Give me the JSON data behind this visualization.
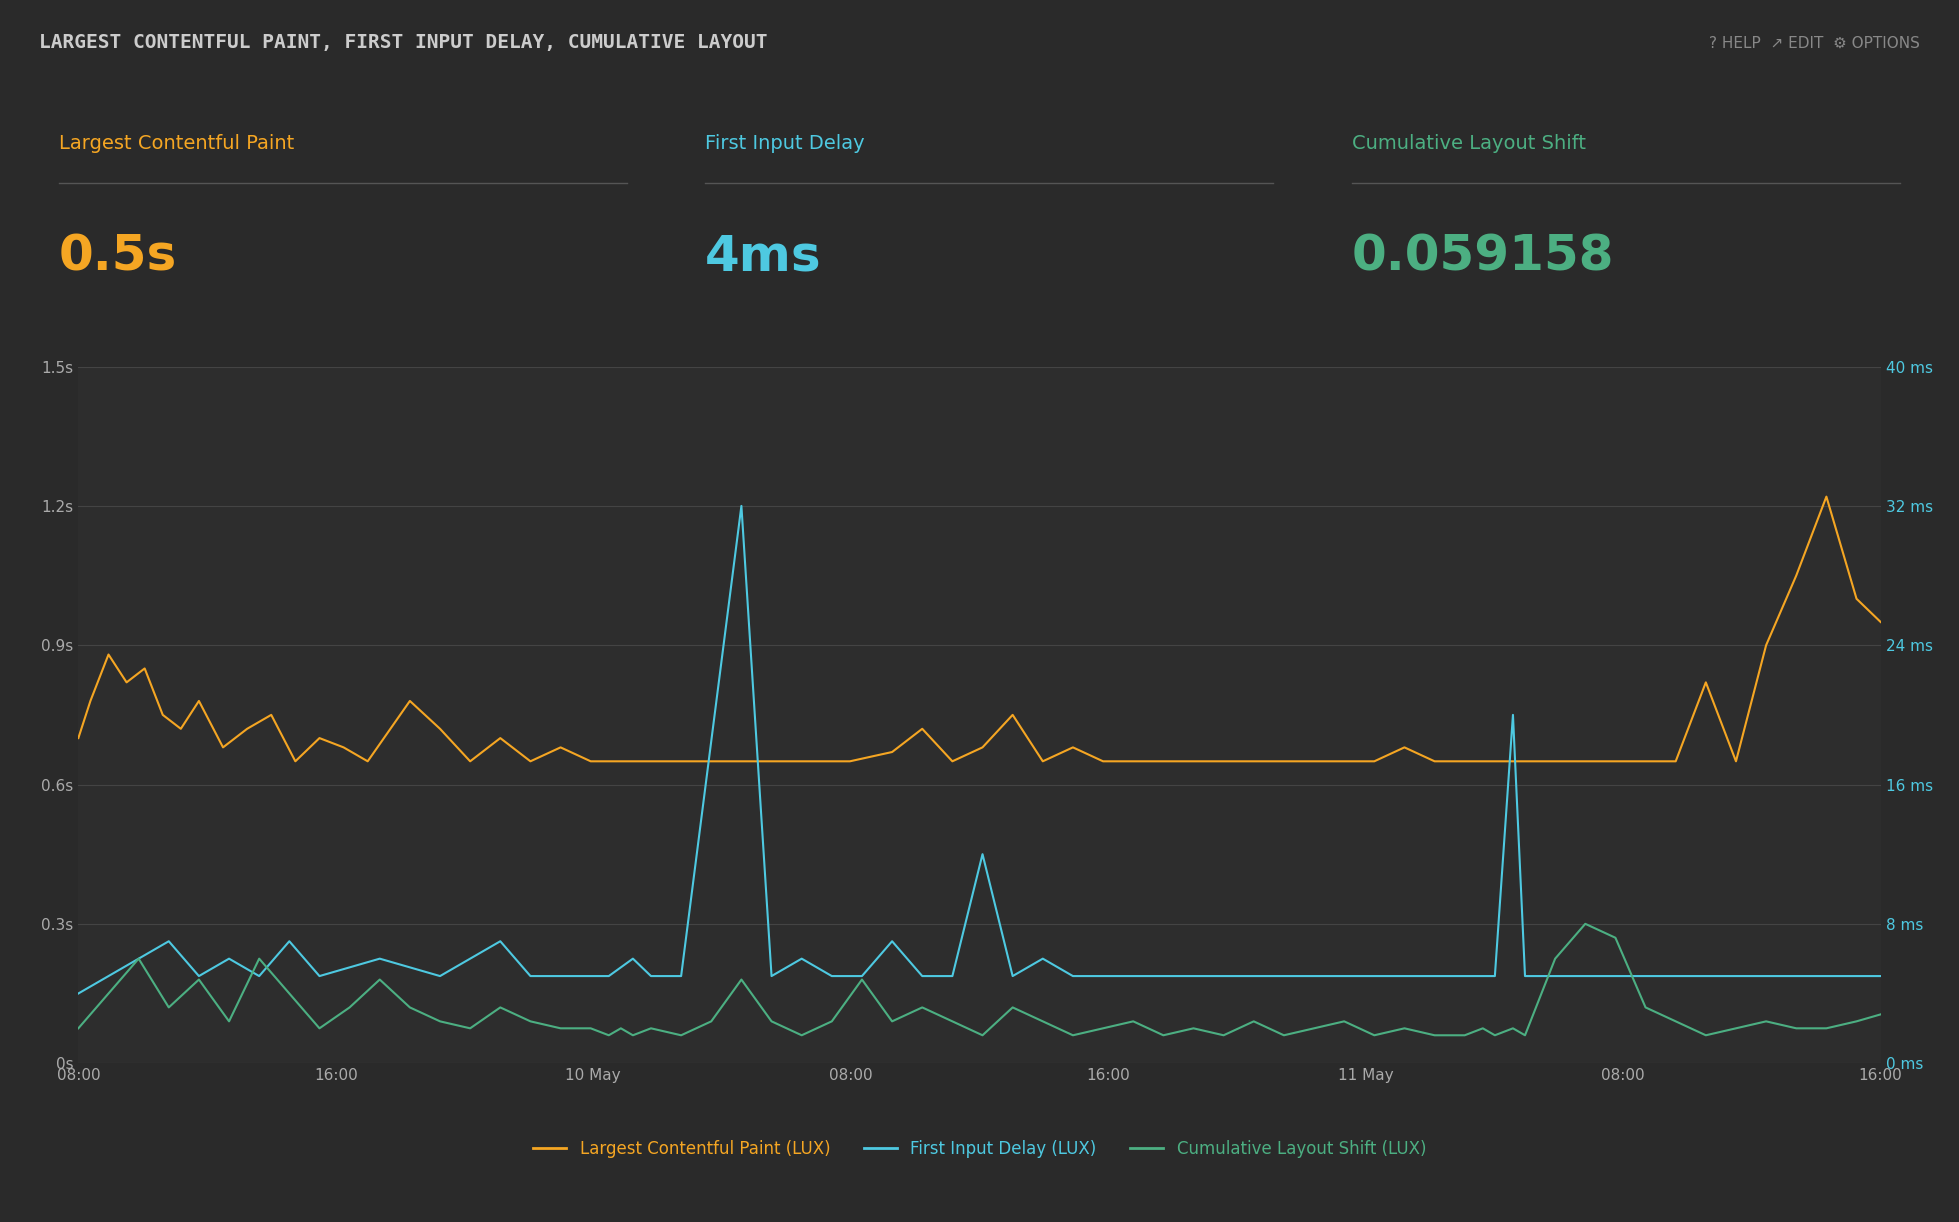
{
  "bg_outer": "#2a2a2a",
  "bg_header": "#1a1a1a",
  "bg_chart": "#2d2d2d",
  "header_text": "LARGEST CONTENTFUL PAINT, FIRST INPUT DELAY, CUMULATIVE LAYOUT",
  "header_right": "? HELP  ↗ EDIT  ⚙ OPTIONS",
  "header_color": "#888888",
  "metric1_label": "Largest Contentful Paint",
  "metric1_value": "0.5s",
  "metric1_label_color": "#f5a623",
  "metric1_value_color": "#f5a623",
  "metric2_label": "First Input Delay",
  "metric2_value": "4ms",
  "metric2_label_color": "#4ec9e1",
  "metric2_value_color": "#4ec9e1",
  "metric3_label": "Cumulative Layout Shift",
  "metric3_value": "0.059158",
  "metric3_label_color": "#4caf82",
  "metric3_value_color": "#4caf82",
  "lcp_color": "#f5a623",
  "fid_color": "#4ec9e1",
  "cls_color": "#4caf82",
  "left_yticks": [
    "0s",
    "0.3s",
    "0.6s",
    "0.9s",
    "1.2s",
    "1.5s"
  ],
  "left_yvals": [
    0,
    0.3,
    0.6,
    0.9,
    1.2,
    1.5
  ],
  "right_yticks": [
    "0 ms",
    "8 ms",
    "16 ms",
    "24 ms",
    "32 ms",
    "40 ms"
  ],
  "right_yvals": [
    0,
    8,
    16,
    24,
    32,
    40
  ],
  "xtick_labels": [
    "08:00",
    "16:00",
    "10 May",
    "08:00",
    "16:00",
    "11 May",
    "08:00",
    "16:00"
  ],
  "legend_labels": [
    "Largest Contentful Paint (LUX)",
    "First Input Delay (LUX)",
    "Cumulative Layout Shift (LUX)"
  ],
  "tick_color": "#aaaaaa",
  "grid_color": "#444444",
  "divider_color": "#555555"
}
